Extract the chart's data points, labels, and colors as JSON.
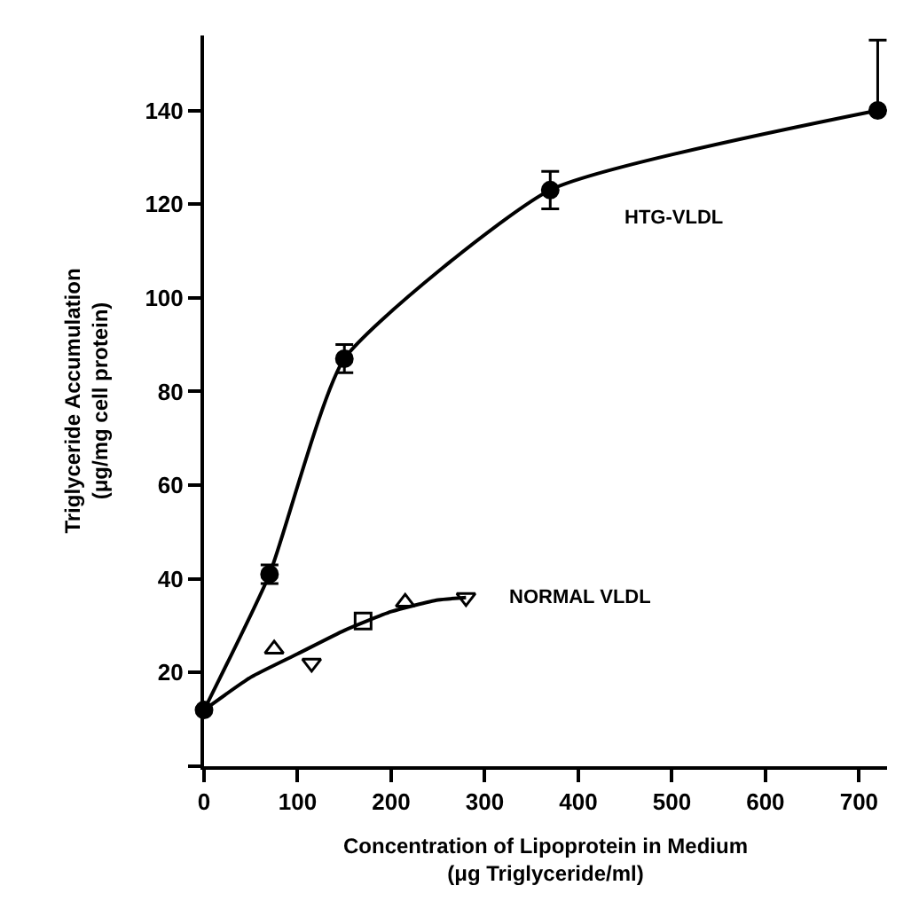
{
  "chart_data": {
    "type": "line",
    "xlabel": "Concentration of Lipoprotein in Medium\n(μg Triglyceride/ml)",
    "ylabel": "Triglyceride Accumulation\n(μg/mg cell protein)",
    "xlim": [
      0,
      730
    ],
    "xticks": [
      0,
      100,
      200,
      300,
      400,
      500,
      600,
      700
    ],
    "ylim": [
      0,
      156
    ],
    "yticks": [
      {
        "value": 0,
        "label": null
      },
      20,
      40,
      60,
      80,
      100,
      120,
      140
    ],
    "grid": false,
    "series": [
      {
        "name": "HTG-VLDL",
        "color": "#000000",
        "marker": "circle",
        "x": [
          0,
          70,
          150,
          370,
          720
        ],
        "values": [
          12,
          41,
          87,
          123,
          140
        ],
        "errors": [
          null,
          2,
          3,
          4,
          [
            140,
            155
          ]
        ]
      },
      {
        "name": "NORMAL VLDL",
        "color": "#000000",
        "marker": "none",
        "x": [
          0,
          50,
          100,
          150,
          200,
          250,
          280
        ],
        "values": [
          12,
          19,
          24,
          29,
          33,
          35.5,
          36
        ]
      },
      {
        "type": "scatter",
        "color": "#000000",
        "marker": "triangle",
        "x": [
          75,
          215
        ],
        "values": [
          25,
          35
        ]
      },
      {
        "type": "scatter",
        "color": "#000000",
        "marker": "triangle-down",
        "x": [
          115,
          280
        ],
        "values": [
          22,
          36
        ]
      },
      {
        "type": "scatter",
        "color": "#000000",
        "marker": "square",
        "x": [
          170
        ],
        "values": [
          31
        ]
      }
    ]
  }
}
